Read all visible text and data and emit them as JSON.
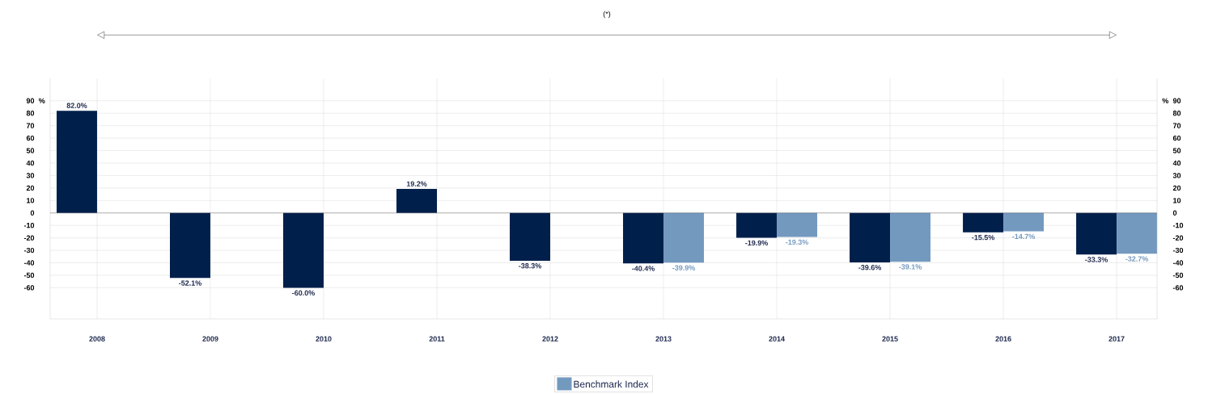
{
  "chart_data": {
    "type": "bar",
    "ylabel": "%",
    "y2label": "%",
    "annotations": [
      "(*)"
    ],
    "categories": [
      "2008",
      "2009",
      "2010",
      "2011",
      "2012",
      "2013",
      "2014",
      "2015",
      "2016",
      "2017"
    ],
    "series": [
      {
        "color": "#001f4b",
        "values": [
          82.0,
          -52.1,
          -60.0,
          19.2,
          -38.3,
          -40.4,
          -19.9,
          -39.6,
          -15.5,
          -33.3
        ],
        "value_labels": [
          "82.0%",
          "-52.1%",
          "-60.0%",
          "19.2%",
          "-38.3%",
          "-40.4%",
          "-19.9%",
          "-39.6%",
          "-15.5%",
          "-33.3%"
        ]
      },
      {
        "name": "Benchmark Index",
        "color": "#7399bf",
        "values": [
          null,
          null,
          null,
          null,
          null,
          -39.9,
          -19.3,
          -39.1,
          -14.7,
          -32.7
        ],
        "value_labels": [
          null,
          null,
          null,
          null,
          null,
          "-39.9%",
          "-19.3%",
          "-39.1%",
          "-14.7%",
          "-32.7%"
        ]
      }
    ],
    "ylim": [
      -85,
      108
    ],
    "yticks": [
      -60,
      -50,
      -40,
      -30,
      -20,
      -10,
      0,
      10,
      20,
      30,
      40,
      50,
      60,
      70,
      80,
      90
    ],
    "y2lim": [
      -85,
      108
    ],
    "y2ticks": [
      -60,
      -50,
      -40,
      -30,
      -20,
      -10,
      0,
      10,
      20,
      30,
      40,
      50,
      60,
      70,
      80,
      90
    ],
    "grid": true,
    "legend": "bottom"
  }
}
